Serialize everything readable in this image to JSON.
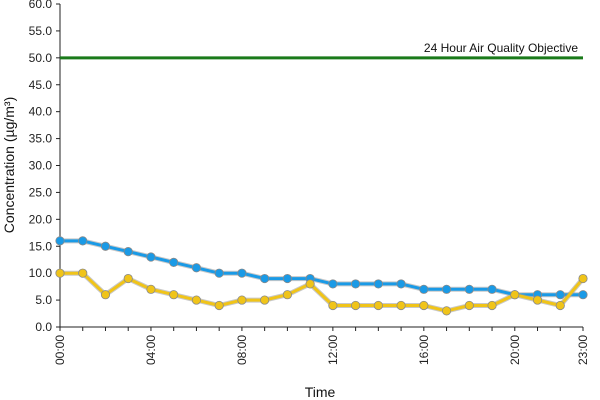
{
  "chart_data": {
    "type": "line",
    "xlabel": "Time",
    "ylabel": "Concentration (µg/m³)",
    "ylim": [
      0,
      60
    ],
    "yticks": [
      "0.0",
      "5.0",
      "10.0",
      "15.0",
      "20.0",
      "25.0",
      "30.0",
      "35.0",
      "40.0",
      "45.0",
      "50.0",
      "55.0",
      "60.0"
    ],
    "xticks": [
      {
        "hour": 0,
        "label": "00:00"
      },
      {
        "hour": 4,
        "label": "04:00"
      },
      {
        "hour": 8,
        "label": "08:00"
      },
      {
        "hour": 12,
        "label": "12:00"
      },
      {
        "hour": 16,
        "label": "16:00"
      },
      {
        "hour": 20,
        "label": "20:00"
      },
      {
        "hour": 23,
        "label": "23:00"
      }
    ],
    "x": [
      0,
      1,
      2,
      3,
      4,
      5,
      6,
      7,
      8,
      9,
      10,
      11,
      12,
      13,
      14,
      15,
      16,
      17,
      18,
      19,
      20,
      21,
      22,
      23
    ],
    "series": [
      {
        "color": "#1a9ae6",
        "values": [
          16,
          16,
          15,
          14,
          13,
          12,
          11,
          10,
          10,
          9,
          9,
          9,
          8,
          8,
          8,
          8,
          7,
          7,
          7,
          7,
          6,
          6,
          6,
          6
        ]
      },
      {
        "color": "#f0c419",
        "values": [
          10,
          10,
          6,
          9,
          7,
          6,
          5,
          4,
          5,
          5,
          6,
          8,
          4,
          4,
          4,
          4,
          4,
          3,
          4,
          4,
          6,
          5,
          4,
          9
        ]
      }
    ],
    "reference_line": {
      "value": 50,
      "label": "24 Hour Air Quality Objective",
      "color": "#1a7a1a"
    },
    "grid": false,
    "legend": "none"
  }
}
